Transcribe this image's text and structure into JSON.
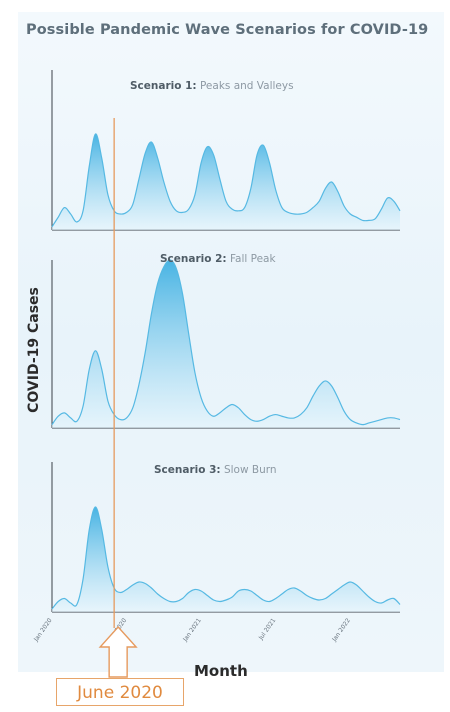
{
  "title": "Possible Pandemic Wave Scenarios for COVID-19",
  "ylabel": "COVID-19 Cases",
  "xlabel": "Month",
  "callout": "June 2020",
  "chart_data": {
    "type": "area",
    "x_ticks": [
      "Jan 2020",
      "Jul 2020",
      "Jan 2021",
      "Jul 2021",
      "Jan 2022"
    ],
    "x_range": [
      0,
      28
    ],
    "marker_x": 5,
    "colors": {
      "fill_top": "#3fb0e2",
      "fill_bottom": "#e3f4fc",
      "stroke": "#56b9e3",
      "marker": "#e69a5e"
    },
    "scenarios": [
      {
        "title_bold": "Scenario 1:",
        "title_rest": " Peaks and Valleys",
        "x": [
          0,
          0.5,
          1,
          1.5,
          2,
          2.5,
          3,
          3.5,
          4,
          4.5,
          5,
          5.5,
          6,
          6.5,
          7,
          7.5,
          8,
          8.5,
          9,
          9.5,
          10,
          10.5,
          11,
          11.5,
          12,
          12.5,
          13,
          13.5,
          14,
          14.5,
          15,
          15.5,
          16,
          16.5,
          17,
          17.5,
          18,
          18.5,
          19,
          19.5,
          20,
          20.5,
          21,
          21.5,
          22,
          22.5,
          23,
          23.5,
          24,
          24.5,
          25,
          25.5,
          26,
          26.5,
          27,
          27.5,
          28
        ],
        "y": [
          2,
          8,
          14,
          10,
          5,
          12,
          40,
          60,
          45,
          22,
          12,
          10,
          11,
          16,
          32,
          48,
          55,
          45,
          30,
          18,
          12,
          11,
          13,
          22,
          42,
          52,
          47,
          32,
          18,
          13,
          12,
          14,
          26,
          47,
          53,
          42,
          25,
          14,
          11,
          10,
          10,
          11,
          14,
          18,
          26,
          30,
          24,
          15,
          10,
          8,
          6,
          6,
          7,
          13,
          20,
          18,
          12
        ]
      },
      {
        "title_bold": "Scenario 2:",
        "title_rest": " Fall Peak",
        "x": [
          0,
          0.5,
          1,
          1.5,
          2,
          2.5,
          3,
          3.5,
          4,
          4.5,
          5,
          5.5,
          6,
          6.5,
          7,
          7.5,
          8,
          8.5,
          9,
          9.5,
          10,
          10.5,
          11,
          11.5,
          12,
          12.5,
          13,
          13.5,
          14,
          14.5,
          15,
          15.5,
          16,
          16.5,
          17,
          17.5,
          18,
          18.5,
          19,
          19.5,
          20,
          20.5,
          21,
          21.5,
          22,
          22.5,
          23,
          23.5,
          24,
          24.5,
          25,
          25.5,
          26,
          26.5,
          27,
          27.5,
          28
        ],
        "y": [
          2,
          7,
          9,
          6,
          4,
          13,
          35,
          46,
          35,
          16,
          8,
          5,
          6,
          12,
          26,
          45,
          68,
          86,
          96,
          100,
          95,
          80,
          56,
          33,
          18,
          10,
          7,
          9,
          12,
          14,
          12,
          8,
          5,
          4,
          5,
          7,
          8,
          7,
          6,
          6,
          8,
          12,
          19,
          25,
          28,
          25,
          18,
          10,
          5,
          3,
          2,
          3,
          4,
          5,
          6,
          6,
          5
        ]
      },
      {
        "title_bold": "Scenario 3:",
        "title_rest": " Slow Burn",
        "x": [
          0,
          0.5,
          1,
          1.5,
          2,
          2.5,
          3,
          3.5,
          4,
          4.5,
          5,
          5.5,
          6,
          6.5,
          7,
          7.5,
          8,
          8.5,
          9,
          9.5,
          10,
          10.5,
          11,
          11.5,
          12,
          12.5,
          13,
          13.5,
          14,
          14.5,
          15,
          15.5,
          16,
          16.5,
          17,
          17.5,
          18,
          18.5,
          19,
          19.5,
          20,
          20.5,
          21,
          21.5,
          22,
          22.5,
          23,
          23.5,
          24,
          24.5,
          25,
          25.5,
          26,
          26.5,
          27,
          27.5,
          28
        ],
        "y": [
          2,
          7,
          9,
          6,
          5,
          22,
          55,
          70,
          55,
          30,
          16,
          13,
          15,
          18,
          20,
          19,
          16,
          12,
          9,
          7,
          7,
          9,
          13,
          15,
          14,
          11,
          8,
          7,
          8,
          10,
          14,
          15,
          14,
          11,
          8,
          7,
          9,
          12,
          15,
          16,
          14,
          11,
          9,
          8,
          9,
          12,
          15,
          18,
          20,
          18,
          14,
          10,
          7,
          6,
          8,
          9,
          5
        ]
      }
    ]
  }
}
